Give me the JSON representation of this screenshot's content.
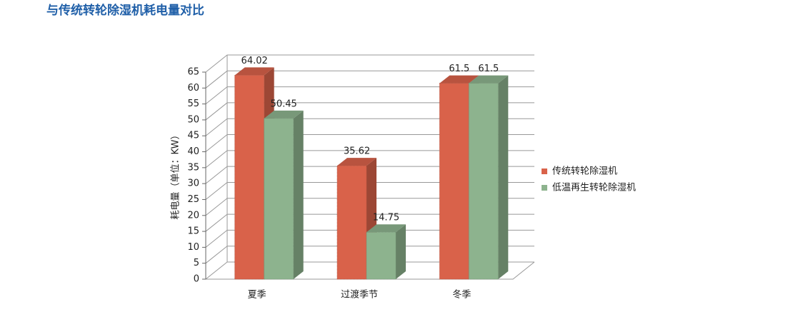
{
  "chart_data": {
    "type": "bar3d",
    "title": "与传统转轮除湿机耗电量对比",
    "y_label": "耗电量（单位：KW）",
    "categories": [
      "夏季",
      "过渡季节",
      "冬季"
    ],
    "series": [
      {
        "name": "传统转轮除湿机",
        "color": "#d9624a",
        "values": [
          64.02,
          35.62,
          61.5
        ]
      },
      {
        "name": "低温再生转轮除湿机",
        "color": "#8db38e",
        "values": [
          50.45,
          14.75,
          61.5
        ]
      }
    ],
    "ylim": [
      0,
      65
    ],
    "yticks": [
      0,
      5,
      10,
      15,
      20,
      25,
      30,
      35,
      40,
      45,
      50,
      55,
      60,
      65
    ],
    "grid": true,
    "legend": "right"
  }
}
